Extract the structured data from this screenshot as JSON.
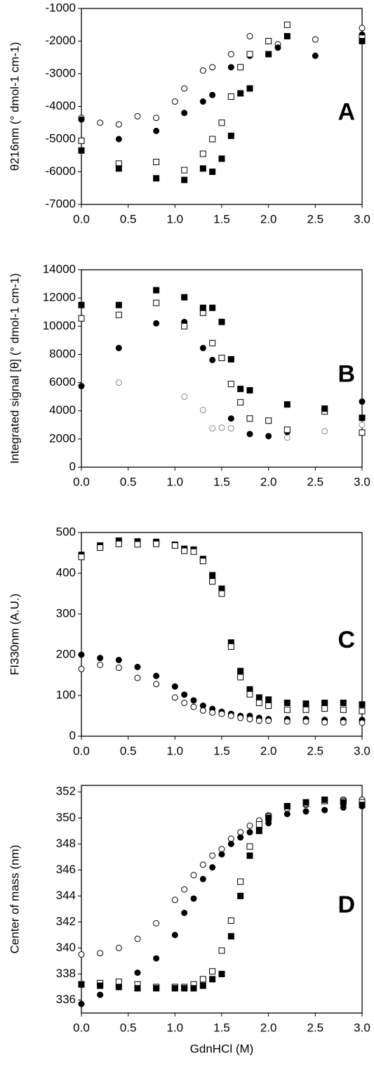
{
  "chart_data": [
    {
      "type": "scatter",
      "annotation": "A",
      "ylabel": "θ216nm (° dmol-1 cm-1)",
      "xlim": [
        0,
        3
      ],
      "xticks": [
        {
          "value": 0,
          "label": "0.0"
        },
        0.5,
        {
          "value": 1,
          "label": "1.0"
        },
        1.5,
        {
          "value": 2,
          "label": "2.0"
        },
        2.5,
        {
          "value": 3,
          "label": "3.0"
        }
      ],
      "ylim": [
        -7000,
        -1000
      ],
      "yticks": [
        -7000,
        -6000,
        -5000,
        -4000,
        -3000,
        -2000,
        -1000
      ],
      "series": [
        {
          "marker": "circle",
          "filled": false,
          "color": "#000000",
          "x": [
            0,
            0.2,
            0.4,
            0.6,
            0.8,
            1.0,
            1.1,
            1.3,
            1.4,
            1.6,
            1.8,
            2.1,
            2.5,
            3.0
          ],
          "values": [
            -4350,
            -4500,
            -4550,
            -4300,
            -4350,
            -3850,
            -3450,
            -2900,
            -2800,
            -2400,
            -1850,
            -2100,
            -1950,
            -1600
          ]
        },
        {
          "marker": "circle",
          "filled": true,
          "color": "#000000",
          "x": [
            0,
            0.4,
            0.8,
            1.1,
            1.3,
            1.4,
            1.6,
            1.8,
            2.1,
            2.5,
            3.0
          ],
          "values": [
            -4400,
            -5000,
            -4750,
            -4200,
            -3850,
            -3650,
            -2800,
            -2450,
            -2200,
            -2450,
            -1800
          ]
        },
        {
          "marker": "square",
          "filled": false,
          "color": "#000000",
          "x": [
            0,
            0.4,
            0.8,
            1.1,
            1.3,
            1.4,
            1.5,
            1.6,
            1.7,
            1.8,
            2.0,
            2.2,
            3.0
          ],
          "values": [
            -5050,
            -5750,
            -5700,
            -5950,
            -5450,
            -5000,
            -4500,
            -3700,
            -2800,
            -2400,
            -2000,
            -1500,
            -1900
          ]
        },
        {
          "marker": "square",
          "filled": true,
          "color": "#000000",
          "x": [
            0,
            0.4,
            0.8,
            1.1,
            1.3,
            1.4,
            1.5,
            1.6,
            1.7,
            1.8,
            2.0,
            2.2,
            3.0
          ],
          "values": [
            -5350,
            -5900,
            -6200,
            -6250,
            -5900,
            -6000,
            -5600,
            -4900,
            -3600,
            -3450,
            -2400,
            -1850,
            -2000
          ]
        }
      ]
    },
    {
      "type": "scatter",
      "annotation": "B",
      "ylabel": "Integrated signal [θ] (° dmol-1 cm-1)",
      "xlim": [
        0,
        3
      ],
      "xticks": [
        {
          "value": 0,
          "label": "0.0"
        },
        0.5,
        {
          "value": 1,
          "label": "1.0"
        },
        1.5,
        {
          "value": 2,
          "label": "2.0"
        },
        2.5,
        {
          "value": 3,
          "label": "3.0"
        }
      ],
      "ylim": [
        0,
        14000
      ],
      "yticks": [
        0,
        2000,
        4000,
        6000,
        8000,
        10000,
        12000,
        14000
      ],
      "series": [
        {
          "marker": "circle",
          "filled": false,
          "color": "#888888",
          "x": [
            0.4,
            1.1,
            1.3,
            1.4,
            1.5,
            1.6,
            2.2,
            2.6,
            3.0
          ],
          "values": [
            6000,
            5000,
            4050,
            2750,
            2800,
            2750,
            2100,
            2550,
            3000
          ]
        },
        {
          "marker": "circle",
          "filled": true,
          "color": "#000000",
          "x": [
            0,
            0.4,
            0.8,
            1.1,
            1.3,
            1.4,
            1.6,
            1.8,
            2.0,
            2.2,
            3.0
          ],
          "values": [
            5750,
            8450,
            10200,
            10300,
            8450,
            7600,
            3450,
            2350,
            2200,
            2500,
            4650
          ]
        },
        {
          "marker": "square",
          "filled": false,
          "color": "#000000",
          "x": [
            0,
            0.4,
            0.8,
            1.1,
            1.3,
            1.4,
            1.5,
            1.6,
            1.7,
            1.8,
            2.0,
            2.2,
            2.6,
            3.0
          ],
          "values": [
            10550,
            10800,
            11650,
            10000,
            10950,
            8800,
            7750,
            5900,
            4600,
            3450,
            3300,
            2650,
            3950,
            2450
          ]
        },
        {
          "marker": "square",
          "filled": true,
          "color": "#000000",
          "x": [
            0,
            0.4,
            0.8,
            1.1,
            1.3,
            1.4,
            1.5,
            1.6,
            1.7,
            1.8,
            2.2,
            2.6,
            3.0
          ],
          "values": [
            11500,
            11500,
            12550,
            12050,
            11300,
            11300,
            10300,
            7650,
            5550,
            5450,
            4450,
            4150,
            3500
          ]
        }
      ]
    },
    {
      "type": "scatter",
      "annotation": "C",
      "ylabel": "FI330nm (A.U.)",
      "xlim": [
        0,
        3
      ],
      "xticks": [
        {
          "value": 0,
          "label": "0.0"
        },
        0.5,
        {
          "value": 1,
          "label": "1.0"
        },
        1.5,
        {
          "value": 2,
          "label": "2.0"
        },
        2.5,
        {
          "value": 3,
          "label": "3.0"
        }
      ],
      "ylim": [
        0,
        500
      ],
      "yticks": [
        0,
        100,
        200,
        300,
        400,
        500
      ],
      "series": [
        {
          "marker": "square",
          "filled": true,
          "color": "#000000",
          "x": [
            0,
            0.2,
            0.4,
            0.6,
            0.8,
            1.0,
            1.1,
            1.2,
            1.3,
            1.4,
            1.5,
            1.6,
            1.7,
            1.8,
            1.9,
            2.0,
            2.2,
            2.4,
            2.6,
            2.8,
            3.0
          ],
          "values": [
            445,
            468,
            480,
            478,
            477,
            470,
            460,
            458,
            435,
            395,
            362,
            230,
            160,
            115,
            95,
            90,
            82,
            80,
            82,
            82,
            78
          ]
        },
        {
          "marker": "square",
          "filled": false,
          "color": "#000000",
          "x": [
            0,
            0.2,
            0.4,
            0.6,
            0.8,
            1.0,
            1.1,
            1.2,
            1.3,
            1.4,
            1.5,
            1.6,
            1.7,
            1.8,
            1.9,
            2.0,
            2.2,
            2.4,
            2.6,
            2.8,
            3.0
          ],
          "values": [
            440,
            463,
            472,
            471,
            472,
            468,
            455,
            453,
            430,
            380,
            350,
            220,
            145,
            103,
            82,
            75,
            65,
            65,
            68,
            65,
            62
          ]
        },
        {
          "marker": "circle",
          "filled": true,
          "color": "#000000",
          "x": [
            0,
            0.2,
            0.4,
            0.6,
            0.8,
            1.0,
            1.1,
            1.2,
            1.3,
            1.4,
            1.5,
            1.6,
            1.7,
            1.8,
            1.9,
            2.0,
            2.2,
            2.4,
            2.6,
            2.8,
            3.0
          ],
          "values": [
            200,
            192,
            187,
            170,
            148,
            122,
            102,
            88,
            75,
            67,
            60,
            55,
            50,
            50,
            45,
            42,
            42,
            42,
            40,
            40,
            40
          ]
        },
        {
          "marker": "circle",
          "filled": false,
          "color": "#000000",
          "x": [
            0,
            0.2,
            0.4,
            0.6,
            0.8,
            1.0,
            1.1,
            1.2,
            1.3,
            1.4,
            1.5,
            1.6,
            1.7,
            1.8,
            1.9,
            2.0,
            2.2,
            2.4,
            2.6,
            2.8,
            3.0
          ],
          "values": [
            165,
            175,
            168,
            143,
            128,
            95,
            82,
            72,
            63,
            58,
            55,
            50,
            45,
            42,
            38,
            38,
            36,
            36,
            34,
            34,
            33
          ]
        }
      ]
    },
    {
      "type": "scatter",
      "annotation": "D",
      "ylabel": "Center of mass (nm)",
      "xlabel": "GdnHCl (M)",
      "xlim": [
        0,
        3
      ],
      "xticks": [
        {
          "value": 0,
          "label": "0.0"
        },
        0.5,
        {
          "value": 1,
          "label": "1.0"
        },
        1.5,
        {
          "value": 2,
          "label": "2.0"
        },
        2.5,
        {
          "value": 3,
          "label": "3.0"
        }
      ],
      "ylim": [
        335,
        352.5
      ],
      "yticks": [
        336,
        338,
        340,
        342,
        344,
        346,
        348,
        350,
        352
      ],
      "series": [
        {
          "marker": "circle",
          "filled": false,
          "color": "#000000",
          "x": [
            0,
            0.2,
            0.4,
            0.6,
            0.8,
            1.0,
            1.1,
            1.2,
            1.3,
            1.4,
            1.5,
            1.6,
            1.7,
            1.8,
            1.9,
            2.0,
            2.2,
            2.4,
            2.6,
            2.8,
            3.0
          ],
          "values": [
            339.5,
            339.6,
            340,
            340.7,
            341.9,
            343.7,
            344.5,
            345.6,
            346.4,
            347.1,
            347.6,
            348.4,
            348.9,
            349.4,
            349.8,
            350.2,
            350.7,
            351.0,
            351.4,
            351.4,
            351.4
          ]
        },
        {
          "marker": "circle",
          "filled": true,
          "color": "#000000",
          "x": [
            0,
            0.2,
            0.4,
            0.6,
            0.8,
            1.0,
            1.1,
            1.2,
            1.3,
            1.4,
            1.5,
            1.6,
            1.7,
            1.8,
            1.9,
            2.0,
            2.2,
            2.4,
            2.6,
            2.8,
            3.0
          ],
          "values": [
            335.7,
            336.4,
            337.2,
            338.1,
            339.2,
            341.0,
            342.7,
            343.8,
            345.3,
            346.2,
            347.2,
            348.0,
            348.5,
            348.9,
            349.2,
            349.6,
            350.3,
            350.5,
            350.6,
            350.8,
            350.9
          ]
        },
        {
          "marker": "square",
          "filled": false,
          "color": "#000000",
          "x": [
            0,
            0.2,
            0.4,
            0.6,
            0.8,
            1.0,
            1.1,
            1.2,
            1.3,
            1.4,
            1.5,
            1.6,
            1.7,
            1.8,
            1.9,
            2.0,
            2.2,
            2.4,
            2.6,
            2.8,
            3.0
          ],
          "values": [
            337.2,
            337.3,
            337.4,
            337.2,
            337.0,
            337.0,
            337.0,
            337.2,
            337.6,
            338.2,
            339.8,
            342.1,
            345.1,
            347.8,
            349.5,
            350.1,
            350.9,
            351.1,
            351.3,
            351.3,
            351.2
          ]
        },
        {
          "marker": "square",
          "filled": true,
          "color": "#000000",
          "x": [
            0,
            0.2,
            0.4,
            0.6,
            0.8,
            1.0,
            1.1,
            1.2,
            1.3,
            1.4,
            1.5,
            1.6,
            1.7,
            1.8,
            1.9,
            2.0,
            2.2,
            2.4,
            2.6,
            2.8,
            3.0
          ],
          "values": [
            337.2,
            337.1,
            337.0,
            336.9,
            336.9,
            336.9,
            336.9,
            336.9,
            337.1,
            337.6,
            338.0,
            340.9,
            344.0,
            347.1,
            349.0,
            350.0,
            350.9,
            351.2,
            351.4,
            351.2,
            351.0
          ]
        }
      ]
    }
  ]
}
